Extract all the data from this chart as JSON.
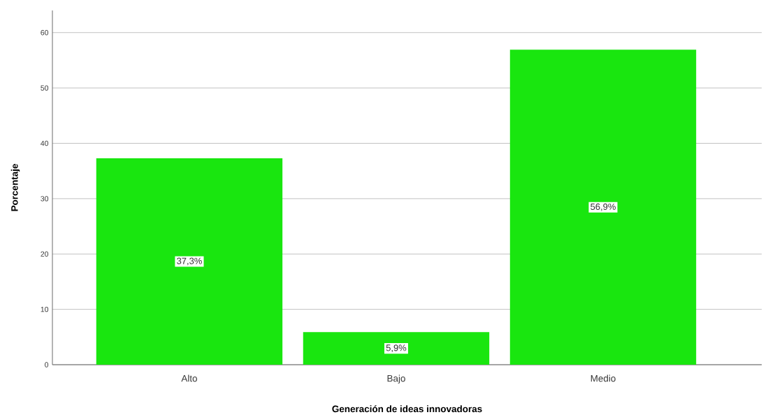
{
  "chart_data": {
    "type": "bar",
    "xlabel": "Generación de ideas innovadoras",
    "ylabel": "Porcentaje",
    "categories": [
      "Alto",
      "Bajo",
      "Medio"
    ],
    "values": [
      37.3,
      5.9,
      56.9
    ],
    "value_labels": [
      "37,3%",
      "5,9%",
      "56,9%"
    ],
    "color": "#19e60f",
    "ylim": [
      0,
      64
    ],
    "yticks": [
      0,
      10,
      20,
      30,
      40,
      50,
      60
    ],
    "grid": "y"
  }
}
